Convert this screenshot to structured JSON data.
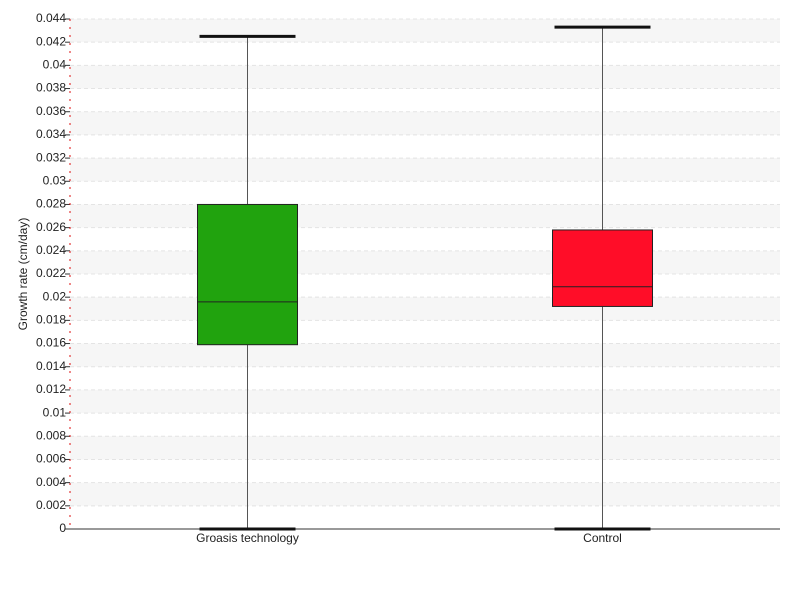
{
  "chart_data": {
    "type": "box",
    "y_label": "Growth rate (cm/day)",
    "categories": [
      "Groasis technology",
      "Control"
    ],
    "boxes": [
      {
        "min": 0,
        "q1": 0.0159,
        "median": 0.0196,
        "q3": 0.028,
        "max": 0.0425,
        "color": "#21a30e"
      },
      {
        "min": 0,
        "q1": 0.0192,
        "median": 0.0209,
        "q3": 0.0258,
        "max": 0.0433,
        "color": "#ff0d28"
      }
    ],
    "ylim": [
      0,
      0.044
    ],
    "yticks": [
      0,
      0.002,
      0.004,
      0.006,
      0.008,
      0.01,
      0.012,
      0.014,
      0.016,
      0.018,
      0.02,
      0.022,
      0.024,
      0.026,
      0.028,
      0.03,
      0.032,
      0.034,
      0.036,
      0.038,
      0.04,
      0.042,
      0.044
    ],
    "grid": true
  }
}
